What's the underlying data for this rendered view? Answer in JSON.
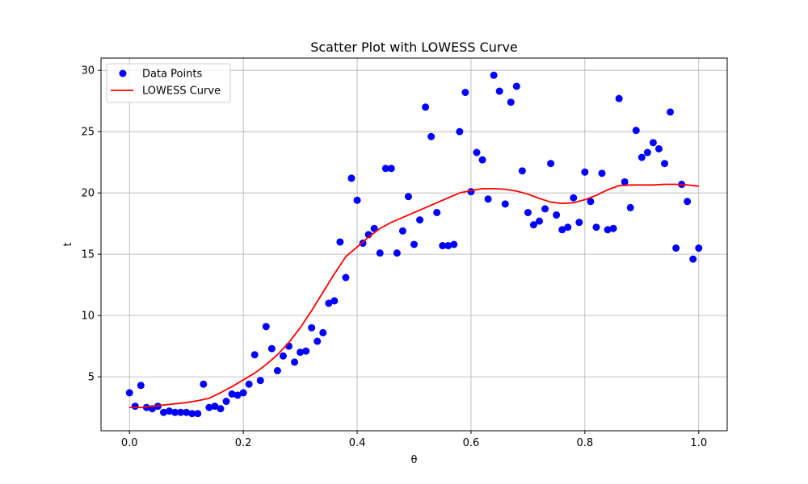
{
  "chart_data": {
    "type": "scatter",
    "title": "Scatter Plot with LOWESS Curve",
    "xlabel": "θ",
    "ylabel": "t",
    "xlim": [
      -0.05,
      1.05
    ],
    "ylim": [
      0.6,
      31.0
    ],
    "xticks": [
      0.0,
      0.2,
      0.4,
      0.6,
      0.8,
      1.0
    ],
    "xtick_labels": [
      "0.0",
      "0.2",
      "0.4",
      "0.6",
      "0.8",
      "1.0"
    ],
    "yticks": [
      5,
      10,
      15,
      20,
      25,
      30
    ],
    "ytick_labels": [
      "5",
      "10",
      "15",
      "20",
      "25",
      "30"
    ],
    "grid": true,
    "legend_position": "top-left",
    "series": [
      {
        "name": "Data Points",
        "kind": "scatter",
        "color": "#0000ff",
        "points": [
          [
            0.0,
            3.7
          ],
          [
            0.01,
            2.6
          ],
          [
            0.02,
            4.3
          ],
          [
            0.03,
            2.5
          ],
          [
            0.04,
            2.4
          ],
          [
            0.05,
            2.6
          ],
          [
            0.06,
            2.1
          ],
          [
            0.07,
            2.2
          ],
          [
            0.08,
            2.1
          ],
          [
            0.09,
            2.1
          ],
          [
            0.1,
            2.1
          ],
          [
            0.11,
            2.0
          ],
          [
            0.12,
            2.0
          ],
          [
            0.13,
            4.4
          ],
          [
            0.14,
            2.5
          ],
          [
            0.15,
            2.6
          ],
          [
            0.16,
            2.4
          ],
          [
            0.17,
            3.0
          ],
          [
            0.18,
            3.6
          ],
          [
            0.19,
            3.5
          ],
          [
            0.2,
            3.7
          ],
          [
            0.21,
            4.4
          ],
          [
            0.22,
            6.8
          ],
          [
            0.23,
            4.7
          ],
          [
            0.24,
            9.1
          ],
          [
            0.25,
            7.3
          ],
          [
            0.26,
            5.5
          ],
          [
            0.27,
            6.7
          ],
          [
            0.28,
            7.5
          ],
          [
            0.29,
            6.2
          ],
          [
            0.3,
            7.0
          ],
          [
            0.31,
            7.1
          ],
          [
            0.32,
            9.0
          ],
          [
            0.33,
            7.9
          ],
          [
            0.34,
            8.6
          ],
          [
            0.35,
            11.0
          ],
          [
            0.36,
            11.2
          ],
          [
            0.37,
            16.0
          ],
          [
            0.38,
            13.1
          ],
          [
            0.39,
            21.2
          ],
          [
            0.4,
            19.4
          ],
          [
            0.41,
            15.9
          ],
          [
            0.42,
            16.6
          ],
          [
            0.43,
            17.1
          ],
          [
            0.44,
            15.1
          ],
          [
            0.45,
            22.0
          ],
          [
            0.46,
            22.0
          ],
          [
            0.47,
            15.1
          ],
          [
            0.48,
            16.9
          ],
          [
            0.49,
            19.7
          ],
          [
            0.5,
            15.8
          ],
          [
            0.51,
            17.8
          ],
          [
            0.52,
            27.0
          ],
          [
            0.53,
            24.6
          ],
          [
            0.54,
            18.4
          ],
          [
            0.55,
            15.7
          ],
          [
            0.56,
            15.7
          ],
          [
            0.57,
            15.8
          ],
          [
            0.58,
            25.0
          ],
          [
            0.59,
            28.2
          ],
          [
            0.6,
            20.1
          ],
          [
            0.61,
            23.3
          ],
          [
            0.62,
            22.7
          ],
          [
            0.63,
            19.5
          ],
          [
            0.64,
            29.6
          ],
          [
            0.65,
            28.3
          ],
          [
            0.66,
            19.1
          ],
          [
            0.67,
            27.4
          ],
          [
            0.68,
            28.7
          ],
          [
            0.69,
            21.8
          ],
          [
            0.7,
            18.4
          ],
          [
            0.71,
            17.4
          ],
          [
            0.72,
            17.7
          ],
          [
            0.73,
            18.7
          ],
          [
            0.74,
            22.4
          ],
          [
            0.75,
            18.2
          ],
          [
            0.76,
            17.0
          ],
          [
            0.77,
            17.2
          ],
          [
            0.78,
            19.6
          ],
          [
            0.79,
            17.6
          ],
          [
            0.8,
            21.7
          ],
          [
            0.81,
            19.3
          ],
          [
            0.82,
            17.2
          ],
          [
            0.83,
            21.6
          ],
          [
            0.84,
            17.0
          ],
          [
            0.85,
            17.1
          ],
          [
            0.86,
            27.7
          ],
          [
            0.87,
            20.9
          ],
          [
            0.88,
            18.8
          ],
          [
            0.89,
            25.1
          ],
          [
            0.9,
            22.9
          ],
          [
            0.91,
            23.3
          ],
          [
            0.92,
            24.1
          ],
          [
            0.93,
            23.6
          ],
          [
            0.94,
            22.4
          ],
          [
            0.95,
            26.6
          ],
          [
            0.96,
            15.5
          ],
          [
            0.97,
            20.7
          ],
          [
            0.98,
            19.3
          ],
          [
            0.99,
            14.6
          ],
          [
            1.0,
            15.5
          ]
        ]
      },
      {
        "name": "LOWESS Curve",
        "kind": "line",
        "color": "#ff0000",
        "points": [
          [
            0.0,
            2.5
          ],
          [
            0.02,
            2.5
          ],
          [
            0.04,
            2.6
          ],
          [
            0.06,
            2.7
          ],
          [
            0.08,
            2.8
          ],
          [
            0.1,
            2.9
          ],
          [
            0.12,
            3.05
          ],
          [
            0.14,
            3.25
          ],
          [
            0.16,
            3.7
          ],
          [
            0.18,
            4.2
          ],
          [
            0.2,
            4.75
          ],
          [
            0.22,
            5.3
          ],
          [
            0.24,
            6.0
          ],
          [
            0.26,
            6.8
          ],
          [
            0.28,
            7.8
          ],
          [
            0.3,
            9.0
          ],
          [
            0.32,
            10.4
          ],
          [
            0.34,
            11.9
          ],
          [
            0.36,
            13.4
          ],
          [
            0.38,
            14.8
          ],
          [
            0.4,
            15.6
          ],
          [
            0.42,
            16.4
          ],
          [
            0.44,
            17.1
          ],
          [
            0.46,
            17.6
          ],
          [
            0.48,
            18.0
          ],
          [
            0.5,
            18.4
          ],
          [
            0.52,
            18.8
          ],
          [
            0.54,
            19.2
          ],
          [
            0.56,
            19.6
          ],
          [
            0.58,
            20.0
          ],
          [
            0.6,
            20.2
          ],
          [
            0.62,
            20.35
          ],
          [
            0.64,
            20.35
          ],
          [
            0.66,
            20.3
          ],
          [
            0.68,
            20.15
          ],
          [
            0.7,
            19.9
          ],
          [
            0.72,
            19.55
          ],
          [
            0.74,
            19.25
          ],
          [
            0.76,
            19.15
          ],
          [
            0.78,
            19.2
          ],
          [
            0.8,
            19.45
          ],
          [
            0.82,
            19.8
          ],
          [
            0.84,
            20.25
          ],
          [
            0.86,
            20.6
          ],
          [
            0.88,
            20.65
          ],
          [
            0.9,
            20.65
          ],
          [
            0.92,
            20.65
          ],
          [
            0.94,
            20.7
          ],
          [
            0.96,
            20.7
          ],
          [
            0.98,
            20.65
          ],
          [
            1.0,
            20.55
          ]
        ]
      }
    ]
  }
}
